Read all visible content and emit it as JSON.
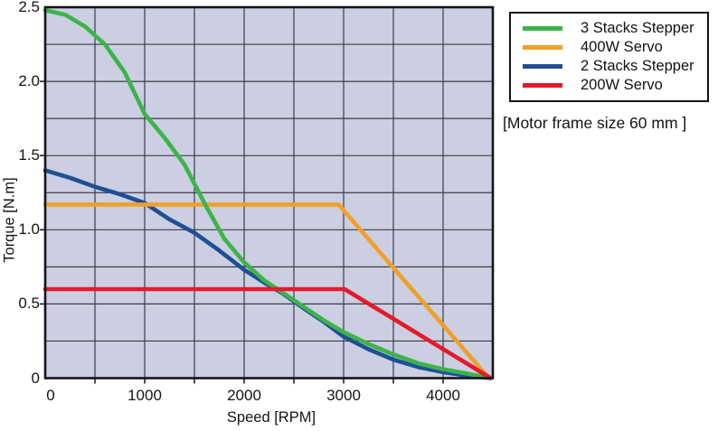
{
  "note": "[Motor frame size 60 mm ]",
  "axes": {
    "x_title": "Speed [RPM]",
    "y_title": "Torque [N.m]"
  },
  "chart_data": {
    "type": "line",
    "title": "",
    "xlabel": "Speed [RPM]",
    "ylabel": "Torque [N.m]",
    "xlim": [
      0,
      4500
    ],
    "ylim": [
      0,
      2.5
    ],
    "x_minor_step": 500,
    "y_minor_step": 0.25,
    "x_ticks": [
      {
        "v": 0,
        "label": "0"
      },
      {
        "v": 1000,
        "label": "1000"
      },
      {
        "v": 2000,
        "label": "2000"
      },
      {
        "v": 3000,
        "label": "3000"
      },
      {
        "v": 4000,
        "label": "4000"
      }
    ],
    "y_ticks": [
      {
        "v": 0,
        "label": "0"
      },
      {
        "v": 0.5,
        "label": "0.5"
      },
      {
        "v": 1.0,
        "label": "1.0"
      },
      {
        "v": 1.5,
        "label": "1.5"
      },
      {
        "v": 2.0,
        "label": "2.0"
      },
      {
        "v": 2.5,
        "label": "2.5"
      }
    ],
    "grid": true,
    "legend_position": "outside-top-right",
    "colors": {
      "plot_bg": "#cbcfe1",
      "grid": "#3c3c49",
      "border": "#141419",
      "text": "#141414"
    },
    "series": [
      {
        "name": "3 Stacks Stepper",
        "color": "#3cb44b",
        "points": [
          [
            0,
            2.48
          ],
          [
            200,
            2.45
          ],
          [
            400,
            2.37
          ],
          [
            600,
            2.25
          ],
          [
            800,
            2.06
          ],
          [
            1000,
            1.78
          ],
          [
            1200,
            1.62
          ],
          [
            1400,
            1.44
          ],
          [
            1600,
            1.18
          ],
          [
            1800,
            0.94
          ],
          [
            2000,
            0.78
          ],
          [
            2200,
            0.66
          ],
          [
            2400,
            0.57
          ],
          [
            2600,
            0.48
          ],
          [
            2800,
            0.39
          ],
          [
            3000,
            0.31
          ],
          [
            3250,
            0.23
          ],
          [
            3500,
            0.16
          ],
          [
            3750,
            0.1
          ],
          [
            4000,
            0.06
          ],
          [
            4250,
            0.03
          ],
          [
            4470,
            0
          ]
        ]
      },
      {
        "name": "400W Servo",
        "color": "#f0a02a",
        "points": [
          [
            0,
            1.17
          ],
          [
            2950,
            1.17
          ],
          [
            4460,
            0
          ]
        ]
      },
      {
        "name": "2 Stacks Stepper",
        "color": "#1e4f94",
        "points": [
          [
            0,
            1.4
          ],
          [
            250,
            1.35
          ],
          [
            500,
            1.29
          ],
          [
            750,
            1.24
          ],
          [
            1000,
            1.18
          ],
          [
            1250,
            1.07
          ],
          [
            1500,
            0.98
          ],
          [
            1750,
            0.86
          ],
          [
            2000,
            0.73
          ],
          [
            2200,
            0.645
          ],
          [
            2400,
            0.565
          ],
          [
            2600,
            0.47
          ],
          [
            2800,
            0.38
          ],
          [
            3000,
            0.28
          ],
          [
            3250,
            0.195
          ],
          [
            3500,
            0.125
          ],
          [
            3750,
            0.075
          ],
          [
            4000,
            0.04
          ],
          [
            4250,
            0.015
          ],
          [
            4470,
            0
          ]
        ]
      },
      {
        "name": "200W Servo",
        "color": "#e41a2c",
        "points": [
          [
            0,
            0.6
          ],
          [
            3010,
            0.6
          ],
          [
            4480,
            0
          ]
        ]
      }
    ]
  }
}
